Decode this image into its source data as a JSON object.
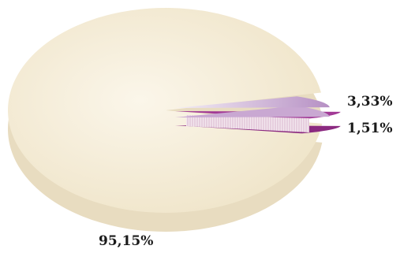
{
  "chart_data": {
    "type": "pie",
    "style": "3d-exploded",
    "slices": [
      {
        "label": "3,33%",
        "value": 3.33,
        "color": "#b690c4"
      },
      {
        "label": "1,51%",
        "value": 1.51,
        "color": "#a23a96"
      },
      {
        "label": "95,15%",
        "value": 95.15,
        "color": "#f3ead5"
      }
    ],
    "legend": "none"
  }
}
